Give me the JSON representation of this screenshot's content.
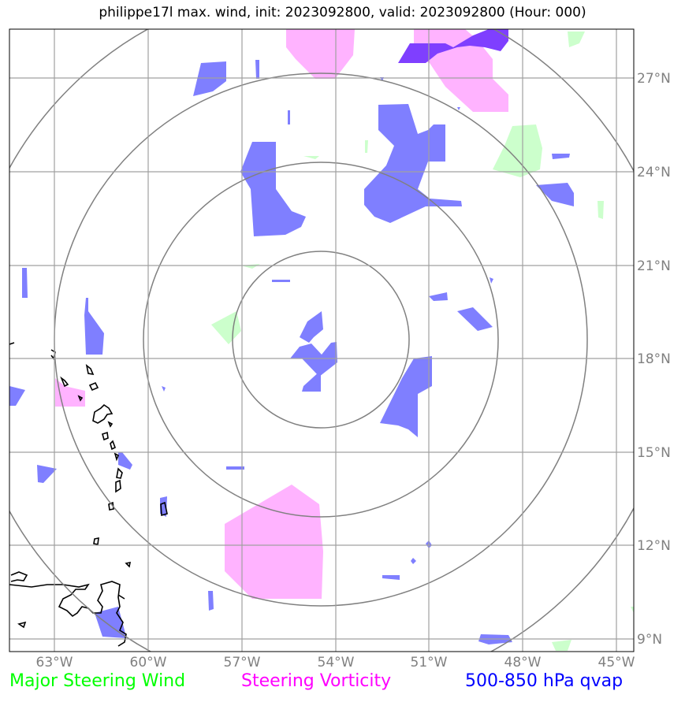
{
  "title": "philippe17l max. wind, init: 2023092800, valid: 2023092800 (Hour: 000)",
  "lon_labels": [
    "63°W",
    "60°W",
    "57°W",
    "54°W",
    "51°W",
    "48°W",
    "45°W"
  ],
  "lat_labels": [
    "27°N",
    "24°N",
    "21°N",
    "18°N",
    "15°N",
    "12°N",
    "9°N"
  ],
  "legend": {
    "steering_wind": "Major Steering Wind",
    "steering_vorticity": "Steering Vorticity",
    "qvap": "500-850 hPa qvap"
  },
  "colors": {
    "steering_wind": "#00ff00",
    "steering_vorticity": "#ff00ff",
    "qvap": "#0000ff",
    "wind_fill": "#ccffcc",
    "vorticity_fill": "#ffb3ff",
    "qvap_fill": "#7f7fff",
    "overlap_fill": "#7f3fff"
  },
  "map": {
    "lon_range": [
      "64.4°W",
      "44.5°W"
    ],
    "lat_range": [
      "8.6°N",
      "28.6°N"
    ],
    "center": "54.5°W, 18.7°N",
    "range_rings": 4
  }
}
